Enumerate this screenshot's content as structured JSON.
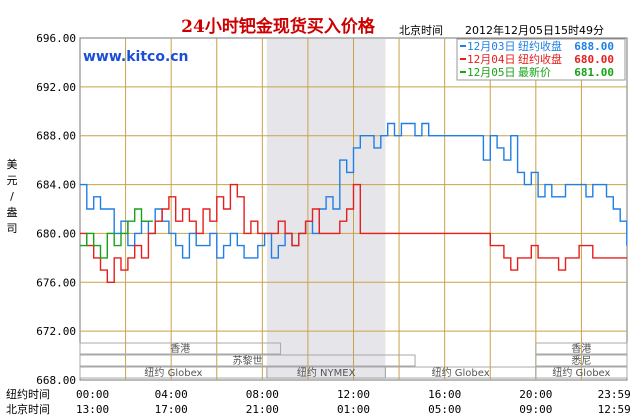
{
  "header": {
    "title": "24小时钯金现货买入价格",
    "local_label": "北京时间",
    "timestamp": "2012年12月05日15时49分",
    "watermark": "www.kitco.cn"
  },
  "legend": [
    {
      "date": "12月03日",
      "label": "纽约收盘",
      "value": "688.00",
      "color": "#1f7fe6"
    },
    {
      "date": "12月04日",
      "label": "纽约收盘",
      "value": "680.00",
      "color": "#e61e1e"
    },
    {
      "date": "12月05日",
      "label": "最新价",
      "value": "681.00",
      "color": "#17a317"
    }
  ],
  "y_unit_label": "美元/盎司",
  "sessions": [
    {
      "name": "香港",
      "start": 0,
      "end": 8.8,
      "row": 0
    },
    {
      "name": "苏黎世",
      "start": 0,
      "end": 14.7,
      "row": 1
    },
    {
      "name": "纽约 Globex",
      "start": 0,
      "end": 8.2,
      "row": 2
    },
    {
      "name": "纽约 NYMEX",
      "start": 8.2,
      "end": 13.4,
      "row": 2
    },
    {
      "name": "纽约 Globex",
      "start": 13.4,
      "end": 20.0,
      "row": 2
    },
    {
      "name": "香港",
      "start": 20.0,
      "end": 24,
      "row": 0
    },
    {
      "name": "悉尼",
      "start": 20.0,
      "end": 24,
      "row": 1
    },
    {
      "name": "纽约 Globex",
      "start": 20.0,
      "end": 24,
      "row": 2
    }
  ],
  "axis_labels": {
    "ny_row": "纽约时间",
    "bj_row": "北京时间"
  },
  "x_ticks_ny": [
    "00:00",
    "04:00",
    "08:00",
    "12:00",
    "16:00",
    "20:00",
    "23:59"
  ],
  "x_ticks_bj": [
    "13:00",
    "17:00",
    "21:00",
    "01:00",
    "05:00",
    "09:00",
    "12:59"
  ],
  "colors": {
    "grid": "#c8a24a",
    "nymex_shade": "#e6e6ea",
    "session_box": "#a8a8a8"
  },
  "chart_data": {
    "type": "line",
    "title": "24小时钯金现货买入价格",
    "xlabel": "",
    "ylabel": "美元/盎司",
    "x_unit": "hours since 00:00 New York time",
    "xlim": [
      0,
      24
    ],
    "ylim": [
      668,
      696
    ],
    "y_ticks": [
      668,
      672,
      676,
      680,
      684,
      688,
      692,
      696
    ],
    "grid": true,
    "legend_position": "top-right",
    "nymex_session_hours": [
      8.2,
      13.4
    ],
    "series": [
      {
        "name": "12月03日",
        "color": "#1f7fe6",
        "x": [
          0,
          0.3,
          0.6,
          0.9,
          1.2,
          1.5,
          1.8,
          2.1,
          2.4,
          2.7,
          3.0,
          3.3,
          3.6,
          3.9,
          4.2,
          4.5,
          4.8,
          5.1,
          5.4,
          5.7,
          6.0,
          6.3,
          6.6,
          6.9,
          7.2,
          7.5,
          7.8,
          8.1,
          8.4,
          8.7,
          9.0,
          9.3,
          9.6,
          9.9,
          10.2,
          10.5,
          10.8,
          11.1,
          11.4,
          11.7,
          12.0,
          12.3,
          12.6,
          12.9,
          13.2,
          13.5,
          13.8,
          14.1,
          14.4,
          14.7,
          15.0,
          15.3,
          15.6,
          15.9,
          16.2,
          16.5,
          16.8,
          17.1,
          17.4,
          17.7,
          18.0,
          18.3,
          18.6,
          18.9,
          19.2,
          19.5,
          19.8,
          20.1,
          20.4,
          20.7,
          21.0,
          21.3,
          21.6,
          21.9,
          22.2,
          22.5,
          22.8,
          23.1,
          23.4,
          23.7,
          23.99
        ],
        "values": [
          684,
          682,
          683,
          682,
          682,
          680,
          681,
          679,
          680,
          681,
          680,
          682,
          681,
          680,
          679,
          678,
          680,
          679,
          679,
          680,
          678,
          679,
          680,
          679,
          678,
          678,
          679,
          680,
          678,
          679,
          680,
          679,
          680,
          681,
          680,
          682,
          683,
          682,
          686,
          685,
          687,
          688,
          688,
          687,
          688,
          689,
          688,
          689,
          689,
          688,
          689,
          688,
          688,
          688,
          688,
          688,
          688,
          688,
          688,
          686,
          688,
          687,
          686,
          688,
          685,
          684,
          685,
          683,
          684,
          683,
          683,
          684,
          684,
          684,
          683,
          684,
          684,
          683,
          682,
          681,
          679
        ]
      },
      {
        "name": "12月04日",
        "color": "#e61e1e",
        "x": [
          0,
          0.3,
          0.6,
          0.9,
          1.2,
          1.5,
          1.8,
          2.1,
          2.4,
          2.7,
          3.0,
          3.3,
          3.6,
          3.9,
          4.2,
          4.5,
          4.8,
          5.1,
          5.4,
          5.7,
          6.0,
          6.3,
          6.6,
          6.9,
          7.2,
          7.5,
          7.8,
          8.1,
          8.4,
          8.7,
          9.0,
          9.3,
          9.6,
          9.9,
          10.2,
          10.5,
          10.8,
          11.1,
          11.4,
          11.7,
          12.0,
          12.3,
          12.6,
          12.9,
          13.2,
          13.5,
          13.8,
          14.1,
          14.4,
          14.7,
          15.0,
          15.3,
          15.6,
          15.9,
          16.2,
          16.5,
          16.8,
          17.1,
          17.4,
          17.7,
          18.0,
          18.3,
          18.6,
          18.9,
          19.2,
          19.5,
          19.8,
          20.1,
          20.4,
          20.7,
          21.0,
          21.3,
          21.6,
          21.9,
          22.2,
          22.5,
          22.8,
          23.1,
          23.4,
          23.7,
          23.99
        ],
        "values": [
          680,
          679,
          678,
          677,
          676,
          678,
          677,
          678,
          679,
          678,
          680,
          681,
          682,
          683,
          681,
          682,
          681,
          680,
          682,
          681,
          683,
          682,
          684,
          683,
          680,
          681,
          680,
          680,
          680,
          681,
          680,
          679,
          680,
          681,
          682,
          680,
          680,
          680,
          681,
          682,
          684,
          680,
          680,
          680,
          680,
          680,
          680,
          680,
          680,
          680,
          680,
          680,
          680,
          680,
          680,
          680,
          680,
          680,
          680,
          680,
          679,
          679,
          678,
          677,
          678,
          678,
          679,
          678,
          678,
          678,
          677,
          678,
          678,
          679,
          679,
          678,
          678,
          678,
          678,
          678,
          678
        ]
      },
      {
        "name": "12月05日",
        "color": "#17a317",
        "x": [
          0,
          0.3,
          0.6,
          0.9,
          1.2,
          1.5,
          1.8,
          2.1,
          2.4,
          2.7,
          3.0,
          3.2
        ],
        "values": [
          679,
          680,
          679,
          678,
          680,
          679,
          680,
          681,
          682,
          681,
          681,
          681
        ]
      }
    ]
  }
}
